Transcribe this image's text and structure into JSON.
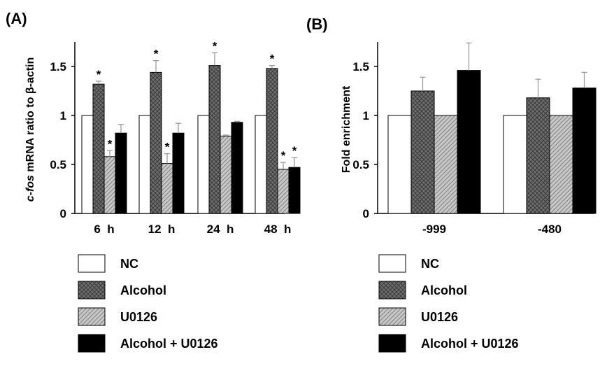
{
  "colors": {
    "NC": "#ffffff",
    "Alcohol": "#6e6e6e",
    "U0126": "#c8c8c8",
    "Alcohol + U0126": "#000000",
    "error_bar": "#9a9a9a"
  },
  "chart_data": [
    {
      "panel": "(A)",
      "type": "bar",
      "ylabel_prefix": "c-fos",
      "ylabel_rest": " mRNA ratio to β-actin",
      "xlabel": "",
      "ylim": [
        0,
        1.75
      ],
      "yticks": [
        0,
        0.5,
        1,
        1.5
      ],
      "ytick_labels": [
        "0",
        "0.5",
        "1",
        "1.5"
      ],
      "grid": false,
      "categories": [
        "6  h",
        "12  h",
        "24  h",
        "48  h"
      ],
      "series": [
        {
          "name": "NC",
          "values": [
            1.0,
            1.0,
            1.0,
            1.0
          ],
          "errors": [
            0,
            0,
            0,
            0
          ],
          "stars": [
            false,
            false,
            false,
            false
          ]
        },
        {
          "name": "Alcohol",
          "values": [
            1.32,
            1.44,
            1.51,
            1.48
          ],
          "errors": [
            0.03,
            0.12,
            0.13,
            0.03
          ],
          "stars": [
            true,
            true,
            true,
            true
          ]
        },
        {
          "name": "U0126",
          "values": [
            0.58,
            0.51,
            0.79,
            0.45
          ],
          "errors": [
            0.06,
            0.1,
            0.01,
            0.07
          ],
          "stars": [
            true,
            true,
            false,
            true
          ]
        },
        {
          "name": "Alcohol + U0126",
          "values": [
            0.82,
            0.82,
            0.93,
            0.47
          ],
          "errors": [
            0.09,
            0.1,
            0.01,
            0.1
          ],
          "stars": [
            false,
            false,
            false,
            true
          ]
        }
      ],
      "legend": [
        "NC",
        "Alcohol",
        "U0126",
        "Alcohol + U0126"
      ],
      "legend_position": "bottom"
    },
    {
      "panel": "(B)",
      "type": "bar",
      "ylabel": "Fold enrichment",
      "xlabel": "",
      "ylim": [
        0,
        1.75
      ],
      "yticks": [
        0,
        0.5,
        1,
        1.5
      ],
      "ytick_labels": [
        "0",
        "0.5",
        "1",
        "1.5"
      ],
      "grid": false,
      "categories": [
        "-999",
        "-480"
      ],
      "series": [
        {
          "name": "NC",
          "values": [
            1.0,
            1.0
          ],
          "errors": [
            0,
            0
          ]
        },
        {
          "name": "Alcohol",
          "values": [
            1.25,
            1.18
          ],
          "errors": [
            0.14,
            0.19
          ]
        },
        {
          "name": "U0126",
          "values": [
            1.0,
            1.0
          ],
          "errors": [
            0,
            0
          ]
        },
        {
          "name": "Alcohol + U0126",
          "values": [
            1.46,
            1.28
          ],
          "errors": [
            0.28,
            0.16
          ]
        }
      ],
      "legend": [
        "NC",
        "Alcohol",
        "U0126",
        "Alcohol + U0126"
      ],
      "legend_position": "bottom"
    }
  ]
}
